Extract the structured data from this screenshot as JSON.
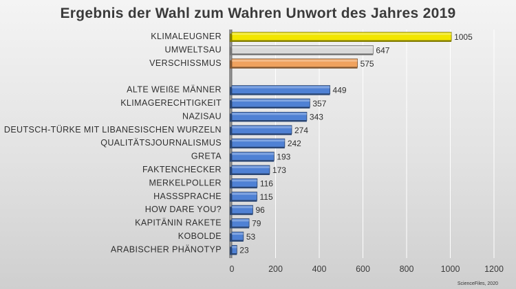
{
  "chart_data": {
    "type": "bar",
    "orientation": "horizontal",
    "title": "Ergebnis der Wahl zum Wahren Unwort des Jahres 2019",
    "categories": [
      "KLIMALEUGNER",
      "UMWELTSAU",
      "VERSCHISSMUS",
      "",
      "ALTE WEIßE MÄNNER",
      "KLIMAGERECHTIGKEIT",
      "NAZISAU",
      "DEUTSCH-TÜRKE MIT LIBANESISCHEN WURZELN",
      "QUALITÄTSJOURNALISMUS",
      "GRETA",
      "FAKTENCHECKER",
      "MERKELPOLLER",
      "HASSSPRACHE",
      "HOW DARE YOU?",
      "KAPITÄNIN RAKETE",
      "KOBOLDE",
      "ARABISCHER PHÄNOTYP"
    ],
    "values": [
      1005,
      647,
      575,
      null,
      449,
      357,
      343,
      274,
      242,
      193,
      173,
      116,
      115,
      96,
      79,
      53,
      23
    ],
    "bar_colors": [
      "#f2e600",
      "#d9d9d9",
      "#f0a25e",
      null,
      "#4f81d4",
      "#4f81d4",
      "#4f81d4",
      "#4f81d4",
      "#4f81d4",
      "#4f81d4",
      "#4f81d4",
      "#4f81d4",
      "#4f81d4",
      "#4f81d4",
      "#4f81d4",
      "#4f81d4",
      "#4f81d4"
    ],
    "xlim": [
      0,
      1200
    ],
    "x_ticks": [
      0,
      200,
      400,
      600,
      800,
      1000,
      1200
    ],
    "xlabel": "",
    "ylabel": "",
    "grid": true
  },
  "source": "ScienceFiles, 2020"
}
